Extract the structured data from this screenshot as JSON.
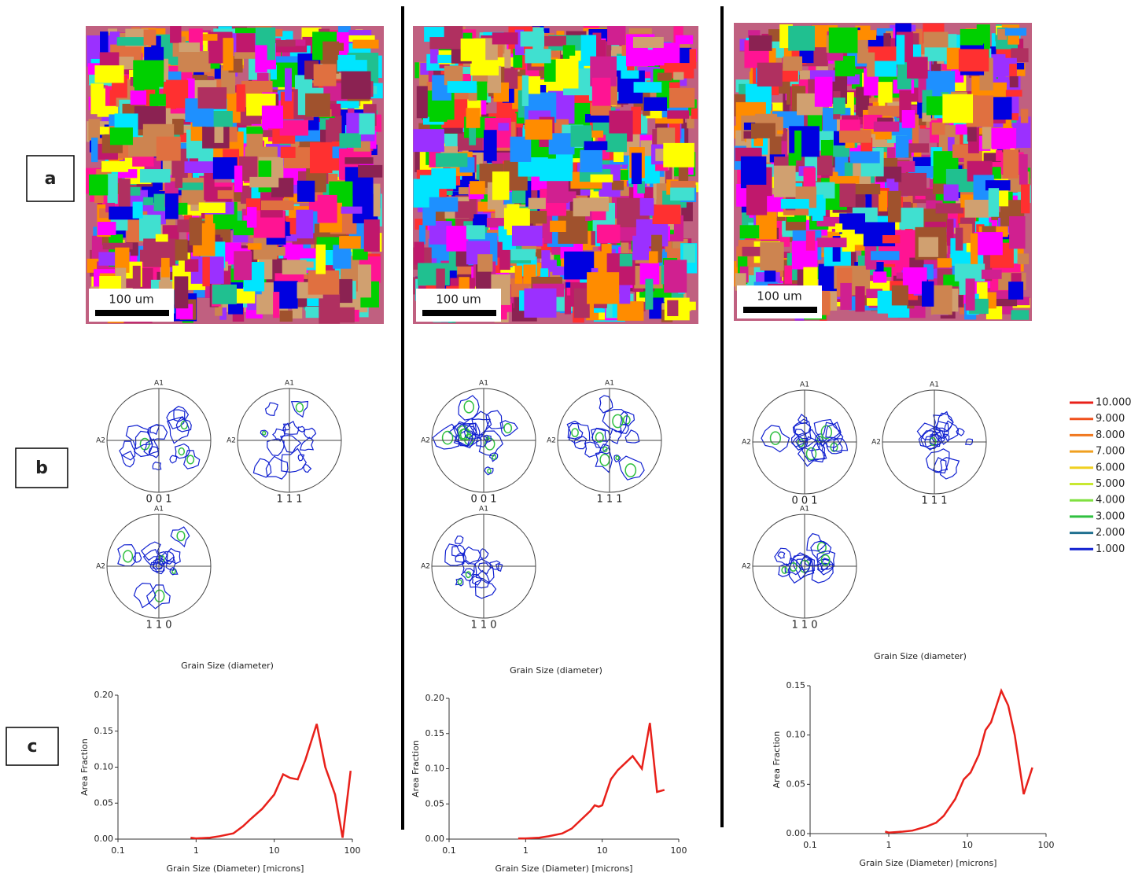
{
  "panel_labels": [
    "a",
    "b",
    "c"
  ],
  "maps": [
    {
      "scale_bar": "100 um"
    },
    {
      "scale_bar": "100 um"
    },
    {
      "scale_bar": "100 um"
    }
  ],
  "pole_figures": [
    {
      "figures": [
        {
          "label": "0 0 1",
          "top": "A1",
          "left": "A2"
        },
        {
          "label": "1 1 1",
          "top": "A1",
          "left": "A2"
        },
        {
          "label": "1 1 0",
          "top": "A1",
          "left": "A2"
        }
      ]
    },
    {
      "figures": [
        {
          "label": "0 0 1",
          "top": "A1",
          "left": "A2"
        },
        {
          "label": "1 1 1",
          "top": "A1",
          "left": "A2"
        },
        {
          "label": "1 1 0",
          "top": "A1",
          "left": "A2"
        }
      ]
    },
    {
      "figures": [
        {
          "label": "0 0 1",
          "top": "A1",
          "left": "A2"
        },
        {
          "label": "1 1 1",
          "top": "A1",
          "left": "A2"
        },
        {
          "label": "1 1 0",
          "top": "A1",
          "left": "A2"
        }
      ]
    }
  ],
  "legend": [
    {
      "label": "10.000",
      "color": "#e8201a"
    },
    {
      "label": "9.000",
      "color": "#f0501c"
    },
    {
      "label": "8.000",
      "color": "#f07820"
    },
    {
      "label": "7.000",
      "color": "#f0a020"
    },
    {
      "label": "6.000",
      "color": "#f0d020"
    },
    {
      "label": "5.000",
      "color": "#c8e830"
    },
    {
      "label": "4.000",
      "color": "#80e040"
    },
    {
      "label": "3.000",
      "color": "#30c040"
    },
    {
      "label": "2.000",
      "color": "#207090"
    },
    {
      "label": "1.000",
      "color": "#1020d0"
    }
  ],
  "chart_data": [
    {
      "type": "line",
      "title": "Grain Size (diameter)",
      "x_label": "Grain Size (Diameter) [microns]",
      "y_label": "Area Fraction",
      "xscale": "log",
      "color": "#e8201a",
      "x": [
        0.85,
        1,
        1.5,
        2,
        3,
        4,
        5,
        7,
        10,
        13,
        16,
        20,
        25,
        35,
        45,
        60,
        75,
        95
      ],
      "values": [
        0.002,
        0.001,
        0.002,
        0.004,
        0.008,
        0.018,
        0.028,
        0.042,
        0.062,
        0.09,
        0.085,
        0.083,
        0.11,
        0.16,
        0.1,
        0.062,
        0.002,
        0.095
      ],
      "xlim": [
        0.1,
        100
      ],
      "xticks": [
        0.1,
        1,
        10,
        100
      ],
      "ylim": [
        0,
        0.2
      ],
      "yticks": [
        {
          "value": 0,
          "label": "0.00"
        },
        {
          "value": 0.05,
          "label": "0.05"
        },
        {
          "value": 0.1,
          "label": "0.10"
        },
        {
          "value": 0.15,
          "label": "0.15"
        },
        {
          "value": 0.2,
          "label": "0.20"
        }
      ]
    },
    {
      "type": "line",
      "title": "Grain Size (diameter)",
      "x_label": "Grain Size (Diameter) [microns]",
      "y_label": "Area Fraction",
      "xscale": "log",
      "color": "#e8201a",
      "x": [
        0.8,
        1,
        1.5,
        2,
        3,
        4,
        5,
        7,
        8,
        9,
        10,
        13,
        16,
        20,
        25,
        33,
        42,
        52,
        65
      ],
      "values": [
        0.001,
        0.001,
        0.002,
        0.004,
        0.008,
        0.015,
        0.025,
        0.04,
        0.048,
        0.046,
        0.048,
        0.085,
        0.098,
        0.108,
        0.118,
        0.1,
        0.165,
        0.067,
        0.07
      ],
      "xlim": [
        0.1,
        100
      ],
      "xticks": [
        0.1,
        1,
        10,
        100
      ],
      "ylim": [
        0,
        0.2
      ],
      "yticks": [
        {
          "value": 0,
          "label": "0.00"
        },
        {
          "value": 0.05,
          "label": "0.05"
        },
        {
          "value": 0.1,
          "label": "0.10"
        },
        {
          "value": 0.15,
          "label": "0.15"
        },
        {
          "value": 0.2,
          "label": "0.20"
        }
      ]
    },
    {
      "type": "line",
      "title": "Grain Size (diameter)",
      "x_label": "Grain Size (Diameter) [microns]",
      "y_label": "Area Fraction",
      "xscale": "log",
      "color": "#e8201a",
      "x": [
        0.9,
        1,
        1.5,
        2,
        3,
        4,
        5,
        7,
        9,
        11,
        14,
        17,
        20,
        27,
        33,
        40,
        52,
        67
      ],
      "values": [
        0.002,
        0.001,
        0.002,
        0.003,
        0.007,
        0.011,
        0.018,
        0.035,
        0.055,
        0.062,
        0.08,
        0.105,
        0.113,
        0.145,
        0.13,
        0.1,
        0.04,
        0.067
      ],
      "xlim": [
        0.1,
        100
      ],
      "xticks": [
        0.1,
        1,
        10,
        100
      ],
      "ylim": [
        0,
        0.15
      ],
      "yticks": [
        {
          "value": 0,
          "label": "0.00"
        },
        {
          "value": 0.05,
          "label": "0.05"
        },
        {
          "value": 0.1,
          "label": "0.10"
        },
        {
          "value": 0.15,
          "label": "0.15"
        }
      ]
    }
  ]
}
